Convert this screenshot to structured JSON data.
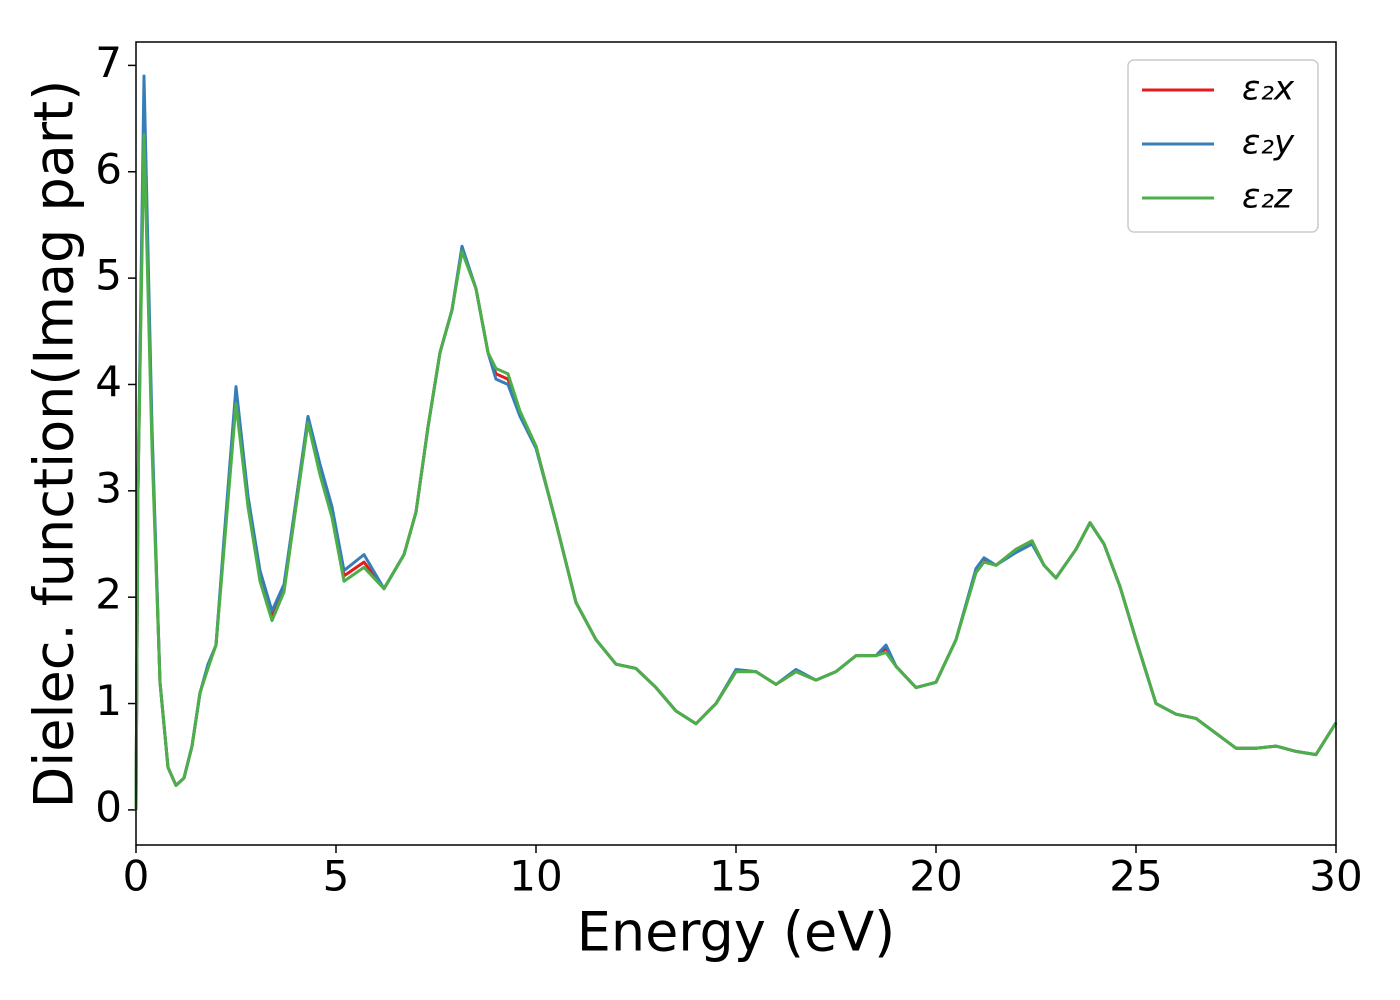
{
  "chart_data": {
    "type": "line",
    "x_label": "Energy (eV)",
    "y_label": "Dielec. function(Imag part)",
    "x": [
      0,
      0.05,
      0.2,
      0.4,
      0.6,
      0.8,
      1.0,
      1.2,
      1.4,
      1.6,
      1.8,
      2.0,
      2.2,
      2.5,
      2.8,
      3.1,
      3.4,
      3.7,
      4.0,
      4.3,
      4.6,
      4.9,
      5.2,
      5.7,
      6.2,
      6.7,
      7.0,
      7.3,
      7.6,
      7.9,
      8.15,
      8.5,
      8.8,
      9.0,
      9.3,
      9.6,
      10.0,
      10.5,
      11.0,
      11.5,
      12.0,
      12.5,
      13.0,
      13.5,
      14.0,
      14.5,
      15.0,
      15.5,
      16.0,
      16.5,
      17.0,
      17.5,
      18.0,
      18.5,
      18.75,
      19.0,
      19.5,
      20.0,
      20.5,
      21.0,
      21.2,
      21.5,
      22.0,
      22.4,
      22.7,
      23.0,
      23.5,
      23.85,
      24.2,
      24.6,
      25.0,
      25.5,
      26.0,
      26.5,
      27.0,
      27.5,
      28.0,
      28.5,
      29.0,
      29.5,
      30.0
    ],
    "series": [
      {
        "name": "ε₂x",
        "color": "#e41a1c",
        "values": [
          0,
          3.0,
          6.6,
          3.5,
          1.2,
          0.4,
          0.23,
          0.3,
          0.6,
          1.1,
          1.35,
          1.55,
          2.5,
          3.9,
          2.9,
          2.2,
          1.83,
          2.1,
          2.9,
          3.68,
          3.2,
          2.8,
          2.2,
          2.33,
          2.08,
          2.4,
          2.8,
          3.6,
          4.3,
          4.7,
          5.28,
          4.9,
          4.3,
          4.1,
          4.05,
          3.72,
          3.42,
          2.7,
          1.95,
          1.6,
          1.37,
          1.33,
          1.15,
          0.93,
          0.81,
          1.0,
          1.3,
          1.3,
          1.18,
          1.3,
          1.22,
          1.3,
          1.45,
          1.45,
          1.52,
          1.35,
          1.15,
          1.2,
          1.6,
          2.25,
          2.35,
          2.3,
          2.45,
          2.53,
          2.3,
          2.18,
          2.45,
          2.7,
          2.5,
          2.1,
          1.6,
          1.0,
          0.9,
          0.86,
          0.72,
          0.58,
          0.58,
          0.6,
          0.55,
          0.52,
          0.82
        ]
      },
      {
        "name": "ε₂y",
        "color": "#377eb8",
        "values": [
          0,
          3.0,
          6.9,
          3.6,
          1.2,
          0.4,
          0.23,
          0.3,
          0.6,
          1.1,
          1.37,
          1.55,
          2.55,
          3.98,
          2.95,
          2.25,
          1.87,
          2.12,
          2.9,
          3.7,
          3.25,
          2.85,
          2.25,
          2.4,
          2.08,
          2.4,
          2.8,
          3.6,
          4.3,
          4.7,
          5.3,
          4.9,
          4.3,
          4.05,
          4.0,
          3.7,
          3.4,
          2.7,
          1.95,
          1.6,
          1.37,
          1.33,
          1.15,
          0.93,
          0.81,
          1.0,
          1.32,
          1.3,
          1.18,
          1.32,
          1.22,
          1.3,
          1.45,
          1.45,
          1.55,
          1.35,
          1.15,
          1.2,
          1.6,
          2.27,
          2.37,
          2.3,
          2.42,
          2.5,
          2.3,
          2.18,
          2.45,
          2.7,
          2.5,
          2.1,
          1.6,
          1.0,
          0.9,
          0.86,
          0.72,
          0.58,
          0.58,
          0.6,
          0.55,
          0.52,
          0.82
        ]
      },
      {
        "name": "ε₂z",
        "color": "#4daf4a",
        "values": [
          0,
          3.0,
          6.35,
          3.4,
          1.2,
          0.4,
          0.23,
          0.3,
          0.6,
          1.1,
          1.33,
          1.55,
          2.45,
          3.82,
          2.85,
          2.15,
          1.78,
          2.05,
          2.85,
          3.64,
          3.15,
          2.75,
          2.15,
          2.28,
          2.08,
          2.4,
          2.8,
          3.6,
          4.3,
          4.7,
          5.25,
          4.9,
          4.3,
          4.15,
          4.1,
          3.75,
          3.42,
          2.7,
          1.95,
          1.6,
          1.37,
          1.33,
          1.15,
          0.93,
          0.81,
          1.0,
          1.3,
          1.3,
          1.18,
          1.3,
          1.22,
          1.3,
          1.45,
          1.45,
          1.48,
          1.35,
          1.15,
          1.2,
          1.6,
          2.23,
          2.33,
          2.3,
          2.45,
          2.53,
          2.3,
          2.18,
          2.45,
          2.7,
          2.5,
          2.1,
          1.6,
          1.0,
          0.9,
          0.86,
          0.72,
          0.58,
          0.58,
          0.6,
          0.55,
          0.52,
          0.82
        ]
      }
    ],
    "xlim": [
      0,
      30
    ],
    "xticks": [
      0,
      5,
      10,
      15,
      20,
      25,
      30
    ],
    "ylim": [
      -0.33,
      7.22
    ],
    "yticks": [
      0,
      1,
      2,
      3,
      4,
      5,
      6,
      7
    ],
    "grid": false,
    "legend": "upper right"
  }
}
